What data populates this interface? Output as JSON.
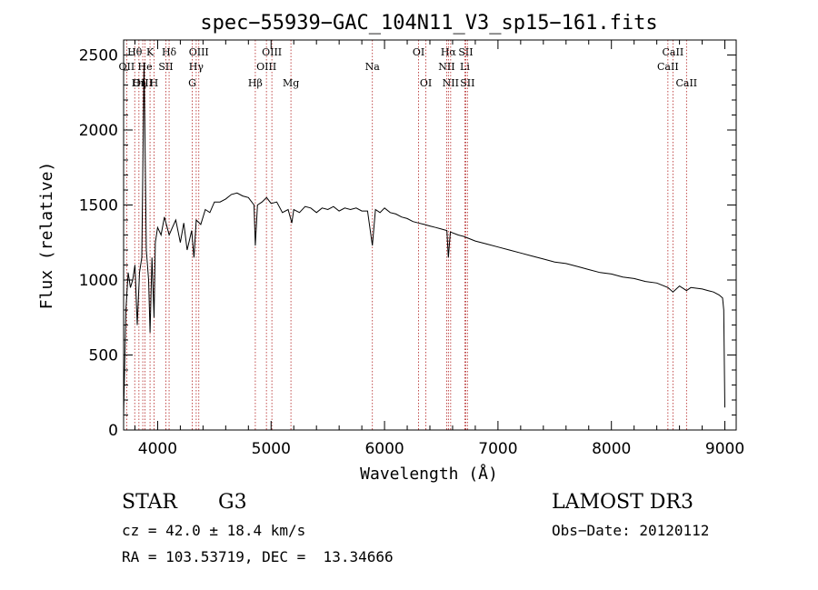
{
  "chart_data": {
    "type": "line",
    "title": "spec−55939−GAC_104N11_V3_sp15−161.fits",
    "xlabel": "Wavelength (Å)",
    "ylabel": "Flux (relative)",
    "xlim": [
      3700,
      9100
    ],
    "ylim": [
      0,
      2600
    ],
    "xticks": [
      4000,
      5000,
      6000,
      7000,
      8000,
      9000
    ],
    "yticks": [
      0,
      500,
      1000,
      1500,
      2000,
      2500
    ],
    "grid": false,
    "series": [
      {
        "name": "spectrum",
        "x": [
          3700,
          3720,
          3740,
          3760,
          3780,
          3800,
          3820,
          3840,
          3860,
          3880,
          3900,
          3920,
          3933,
          3950,
          3968,
          3980,
          4000,
          4030,
          4060,
          4101,
          4130,
          4160,
          4200,
          4230,
          4260,
          4300,
          4320,
          4340,
          4380,
          4420,
          4460,
          4500,
          4550,
          4600,
          4650,
          4700,
          4750,
          4800,
          4850,
          4861,
          4880,
          4920,
          4960,
          5000,
          5050,
          5100,
          5150,
          5183,
          5200,
          5250,
          5300,
          5350,
          5400,
          5450,
          5500,
          5550,
          5600,
          5650,
          5700,
          5750,
          5800,
          5850,
          5893,
          5920,
          5960,
          6000,
          6050,
          6100,
          6150,
          6200,
          6250,
          6300,
          6350,
          6400,
          6450,
          6500,
          6550,
          6563,
          6580,
          6650,
          6700,
          6800,
          6900,
          7000,
          7100,
          7200,
          7300,
          7400,
          7500,
          7600,
          7700,
          7800,
          7900,
          8000,
          8100,
          8200,
          8300,
          8400,
          8498,
          8542,
          8600,
          8662,
          8700,
          8800,
          8850,
          8900,
          8950,
          8980,
          8990,
          9000
        ],
        "values": [
          100,
          800,
          1050,
          950,
          1000,
          1100,
          700,
          1050,
          1150,
          2450,
          1200,
          1000,
          650,
          1150,
          750,
          1250,
          1350,
          1300,
          1420,
          1300,
          1350,
          1400,
          1250,
          1380,
          1200,
          1330,
          1150,
          1400,
          1370,
          1470,
          1450,
          1520,
          1520,
          1540,
          1570,
          1580,
          1560,
          1550,
          1500,
          1230,
          1500,
          1520,
          1550,
          1510,
          1520,
          1450,
          1470,
          1380,
          1470,
          1450,
          1490,
          1480,
          1450,
          1480,
          1470,
          1490,
          1460,
          1480,
          1470,
          1480,
          1460,
          1460,
          1230,
          1470,
          1450,
          1480,
          1450,
          1440,
          1420,
          1410,
          1390,
          1380,
          1370,
          1360,
          1350,
          1340,
          1330,
          1150,
          1320,
          1300,
          1290,
          1260,
          1240,
          1220,
          1200,
          1180,
          1160,
          1140,
          1120,
          1110,
          1090,
          1070,
          1050,
          1040,
          1020,
          1010,
          990,
          980,
          950,
          920,
          960,
          930,
          950,
          940,
          930,
          920,
          900,
          880,
          800,
          150
        ]
      }
    ],
    "line_markers": [
      {
        "label": "Hθ",
        "wavelength": 3798,
        "row": 1
      },
      {
        "label": "OII",
        "wavelength": 3727,
        "row": 2
      },
      {
        "label": "OIII",
        "wavelength": 3869,
        "row": 3
      },
      {
        "label": "Hη",
        "wavelength": 3835,
        "row": 3
      },
      {
        "label": "K",
        "wavelength": 3933,
        "row": 1
      },
      {
        "label": "He",
        "wavelength": 3889,
        "row": 2
      },
      {
        "label": "H",
        "wavelength": 3968,
        "row": 3
      },
      {
        "label": "SII",
        "wavelength": 4072,
        "row": 2
      },
      {
        "label": "Hδ",
        "wavelength": 4101,
        "row": 1
      },
      {
        "label": "OIII",
        "wavelength": 4363,
        "row": 1
      },
      {
        "label": "Hγ",
        "wavelength": 4340,
        "row": 2
      },
      {
        "label": "G",
        "wavelength": 4305,
        "row": 3
      },
      {
        "label": "Hβ",
        "wavelength": 4861,
        "row": 3
      },
      {
        "label": "OIII",
        "wavelength": 5007,
        "row": 1
      },
      {
        "label": "OIII",
        "wavelength": 4959,
        "row": 2
      },
      {
        "label": "Mg",
        "wavelength": 5175,
        "row": 3
      },
      {
        "label": "Na",
        "wavelength": 5893,
        "row": 2
      },
      {
        "label": "OI",
        "wavelength": 6300,
        "row": 1
      },
      {
        "label": "OI",
        "wavelength": 6364,
        "row": 3
      },
      {
        "label": "Hα",
        "wavelength": 6563,
        "row": 1
      },
      {
        "label": "NII",
        "wavelength": 6548,
        "row": 2
      },
      {
        "label": "NII",
        "wavelength": 6583,
        "row": 3
      },
      {
        "label": "SII",
        "wavelength": 6716,
        "row": 1
      },
      {
        "label": "Li",
        "wavelength": 6708,
        "row": 2
      },
      {
        "label": "SII",
        "wavelength": 6731,
        "row": 3
      },
      {
        "label": "CaII",
        "wavelength": 8542,
        "row": 1
      },
      {
        "label": "CaII",
        "wavelength": 8498,
        "row": 2
      },
      {
        "label": "CaII",
        "wavelength": 8662,
        "row": 3
      }
    ]
  },
  "info": {
    "class_label": "STAR",
    "subclass": "G3",
    "survey": "LAMOST DR3",
    "cz": "cz = 42.0 ± 18.4 km/s",
    "obs_date": "Obs−Date: 20120112",
    "coords": "RA = 103.53719, DEC =  13.34666"
  }
}
